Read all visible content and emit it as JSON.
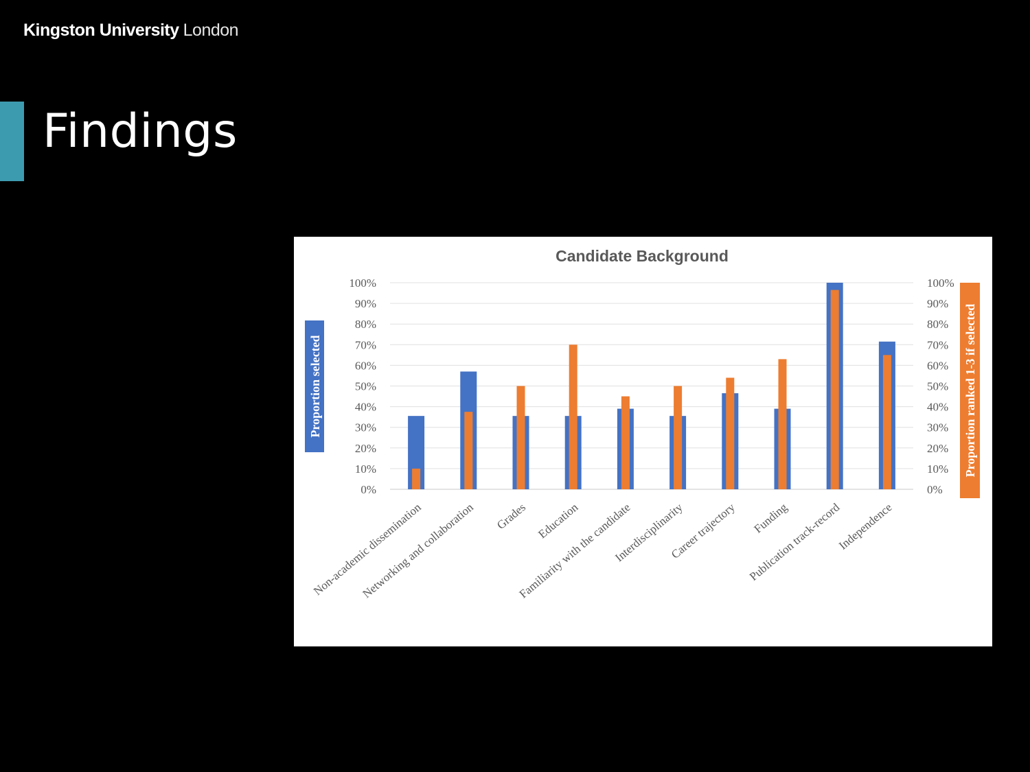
{
  "header": {
    "logo_brand": "Kingston University",
    "logo_place": "London"
  },
  "slide": {
    "title": "Findings"
  },
  "colors": {
    "accent": "#3d9bb0",
    "series_primary": "#4472c4",
    "series_secondary": "#ed7d31"
  },
  "chart_data": {
    "type": "bar",
    "title": "Candidate Background",
    "ylabel": "Proportion selected",
    "y2label": "Proportion ranked 1-3 if selected",
    "ylim": [
      0,
      1
    ],
    "y2lim": [
      0,
      1
    ],
    "ticks": [
      "0%",
      "10%",
      "20%",
      "30%",
      "40%",
      "50%",
      "60%",
      "70%",
      "80%",
      "90%",
      "100%"
    ],
    "grid": true,
    "categories": [
      "Non-academic dissemination",
      "Networking and collaboration",
      "Grades",
      "Education",
      "Familiarity with the candidate",
      "Interdisciplinarity",
      "Career trajectory",
      "Funding",
      "Publication track-record",
      "Independence"
    ],
    "series": [
      {
        "color": "#4472c4",
        "axis": "left",
        "values": [
          0.355,
          0.57,
          0.355,
          0.355,
          0.39,
          0.355,
          0.465,
          0.39,
          1.0,
          0.715
        ]
      },
      {
        "color": "#ed7d31",
        "axis": "right",
        "values": [
          0.1,
          0.375,
          0.5,
          0.7,
          0.45,
          0.5,
          0.54,
          0.63,
          0.965,
          0.65
        ]
      }
    ]
  }
}
